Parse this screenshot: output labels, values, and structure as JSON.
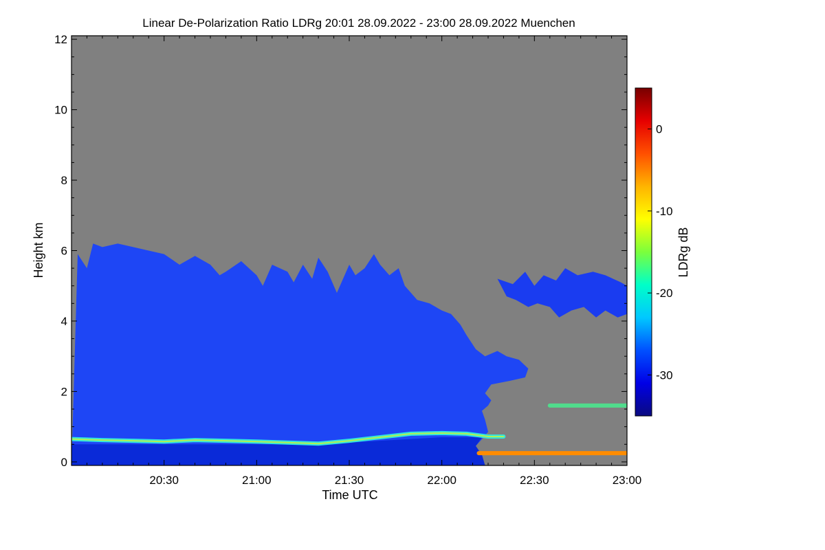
{
  "chart_data": {
    "type": "heatmap",
    "title": "Linear De-Polarization Ratio LDRg   20:01 28.09.2022 - 23:00 28.09.2022 Muenchen",
    "xlabel": "Time UTC",
    "ylabel": "Height km",
    "x_unit": "minutes after 20:00 UTC",
    "x_range": [
      0,
      180
    ],
    "xticks": [
      {
        "value": 30,
        "label": "20:30"
      },
      {
        "value": 60,
        "label": "21:00"
      },
      {
        "value": 90,
        "label": "21:30"
      },
      {
        "value": 120,
        "label": "22:00"
      },
      {
        "value": 150,
        "label": "22:30"
      },
      {
        "value": 180,
        "label": "23:00"
      }
    ],
    "y_range": [
      -0.1,
      12.1
    ],
    "yticks": [
      0,
      2,
      4,
      6,
      8,
      10,
      12
    ],
    "colorbar": {
      "label": "LDRg dB",
      "range": [
        -35,
        5
      ],
      "ticks": [
        0,
        -10,
        -20,
        -30
      ],
      "colors": [
        "#0a0a80",
        "#0000e6",
        "#0050ff",
        "#00c8ff",
        "#00ffc8",
        "#7bff3c",
        "#ffff00",
        "#ffb400",
        "#ff5000",
        "#e60000",
        "#780000"
      ]
    },
    "background_color": "#808080",
    "regions": [
      {
        "name": "cloud-main-layer",
        "color": "#1e46f5",
        "polygon": [
          [
            0,
            -0.1
          ],
          [
            2,
            5.9
          ],
          [
            5,
            5.5
          ],
          [
            7,
            6.2
          ],
          [
            10,
            6.1
          ],
          [
            15,
            6.2
          ],
          [
            20,
            6.1
          ],
          [
            25,
            6.0
          ],
          [
            30,
            5.9
          ],
          [
            35,
            5.6
          ],
          [
            40,
            5.85
          ],
          [
            45,
            5.6
          ],
          [
            48,
            5.3
          ],
          [
            50,
            5.4
          ],
          [
            55,
            5.7
          ],
          [
            60,
            5.3
          ],
          [
            62,
            5.0
          ],
          [
            65,
            5.6
          ],
          [
            70,
            5.4
          ],
          [
            72,
            5.1
          ],
          [
            75,
            5.6
          ],
          [
            78,
            5.2
          ],
          [
            80,
            5.8
          ],
          [
            83,
            5.4
          ],
          [
            86,
            4.8
          ],
          [
            90,
            5.6
          ],
          [
            92,
            5.3
          ],
          [
            95,
            5.5
          ],
          [
            98,
            5.9
          ],
          [
            100,
            5.6
          ],
          [
            103,
            5.3
          ],
          [
            106,
            5.5
          ],
          [
            108,
            5.0
          ],
          [
            112,
            4.6
          ],
          [
            116,
            4.5
          ],
          [
            120,
            4.3
          ],
          [
            123,
            4.2
          ],
          [
            126,
            3.9
          ],
          [
            128,
            3.6
          ],
          [
            131,
            3.2
          ],
          [
            134,
            3.0
          ],
          [
            138,
            3.15
          ],
          [
            141,
            3.0
          ],
          [
            145,
            2.9
          ],
          [
            148,
            2.65
          ],
          [
            147,
            2.4
          ],
          [
            142,
            2.3
          ],
          [
            136,
            2.2
          ],
          [
            134,
            1.95
          ],
          [
            136,
            1.75
          ],
          [
            135,
            1.6
          ],
          [
            133,
            1.45
          ],
          [
            134,
            1.2
          ],
          [
            135,
            0.85
          ],
          [
            133,
            0.65
          ],
          [
            131,
            0.45
          ],
          [
            133,
            0.2
          ],
          [
            134,
            -0.1
          ]
        ]
      },
      {
        "name": "cloud-upper-patch",
        "color": "#1a3cf0",
        "polygon": [
          [
            138,
            5.2
          ],
          [
            143,
            5.05
          ],
          [
            147,
            5.4
          ],
          [
            150,
            5.0
          ],
          [
            153,
            5.3
          ],
          [
            157,
            5.15
          ],
          [
            160,
            5.5
          ],
          [
            164,
            5.3
          ],
          [
            169,
            5.4
          ],
          [
            173,
            5.3
          ],
          [
            178,
            5.1
          ],
          [
            180,
            5.0
          ],
          [
            180,
            4.2
          ],
          [
            177,
            4.1
          ],
          [
            173,
            4.3
          ],
          [
            170,
            4.1
          ],
          [
            166,
            4.4
          ],
          [
            162,
            4.3
          ],
          [
            158,
            4.1
          ],
          [
            155,
            4.4
          ],
          [
            151,
            4.5
          ],
          [
            148,
            4.4
          ],
          [
            144,
            4.6
          ],
          [
            141,
            4.7
          ]
        ]
      },
      {
        "name": "near-surface-dark-layer",
        "color": "#0a2ad8",
        "polygon": [
          [
            0,
            -0.1
          ],
          [
            0,
            0.5
          ],
          [
            40,
            0.5
          ],
          [
            80,
            0.5
          ],
          [
            100,
            0.6
          ],
          [
            120,
            0.7
          ],
          [
            133,
            0.7
          ],
          [
            131,
            0.45
          ],
          [
            133,
            0.2
          ],
          [
            134,
            -0.1
          ]
        ]
      }
    ],
    "layers": [
      {
        "name": "aerosol-layer-cyan",
        "color": "#33e6dc",
        "core_color": "#b4f050",
        "points": [
          [
            0,
            0.65
          ],
          [
            10,
            0.62
          ],
          [
            20,
            0.6
          ],
          [
            30,
            0.58
          ],
          [
            40,
            0.62
          ],
          [
            50,
            0.6
          ],
          [
            60,
            0.58
          ],
          [
            70,
            0.55
          ],
          [
            80,
            0.52
          ],
          [
            90,
            0.6
          ],
          [
            100,
            0.7
          ],
          [
            110,
            0.8
          ],
          [
            120,
            0.82
          ],
          [
            128,
            0.8
          ],
          [
            135,
            0.72
          ],
          [
            140,
            0.72
          ]
        ]
      },
      {
        "name": "surface-layer-orange",
        "color": "#ff8c00",
        "points": [
          [
            132,
            0.25
          ],
          [
            145,
            0.25
          ],
          [
            160,
            0.25
          ],
          [
            180,
            0.25
          ]
        ]
      },
      {
        "name": "low-layer-green",
        "color": "#50dc8c",
        "points": [
          [
            155,
            1.6
          ],
          [
            165,
            1.6
          ],
          [
            172,
            1.6
          ],
          [
            180,
            1.6
          ]
        ]
      }
    ]
  }
}
